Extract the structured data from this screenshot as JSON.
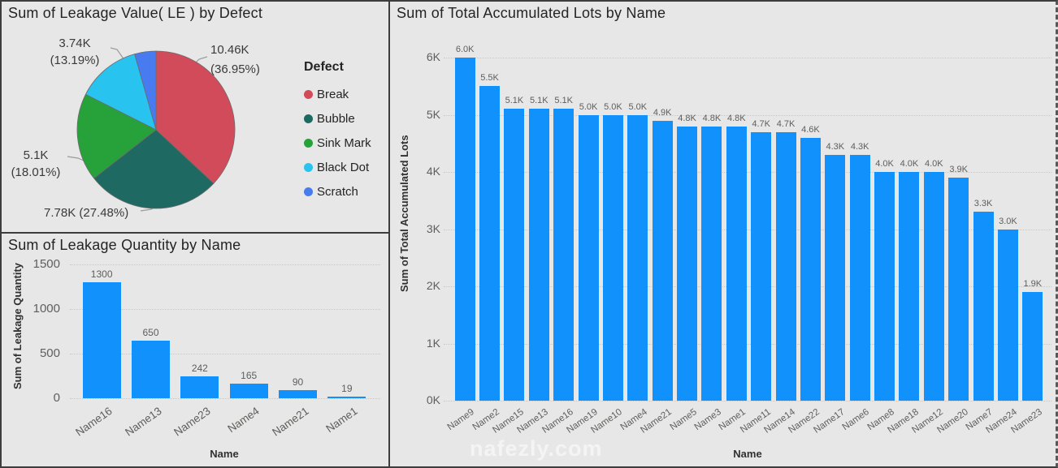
{
  "watermark": "nafezly.com",
  "colors": {
    "bar_blue": "#1191FB",
    "panel_bg": "#e7e7e7",
    "break_red": "#D24B5A",
    "bubble_teal": "#1E6962",
    "sink_mark_green": "#27A23B",
    "black_dot_cyan": "#29C3EF",
    "scratch_blue": "#477BEF"
  },
  "chart_data": [
    {
      "type": "pie",
      "title": "Sum of Leakage Value( LE ) by Defect",
      "legend_title": "Defect",
      "legend_position": "right",
      "slices": [
        {
          "label": "Break",
          "value_text": "10.46K",
          "pct": 36.95,
          "color": "#D24B5A",
          "callout_lines": [
            "10.46K",
            "(36.95%)"
          ]
        },
        {
          "label": "Bubble",
          "value_text": "7.78K",
          "pct": 27.48,
          "color": "#1E6962",
          "callout_lines": [
            "7.78K (27.48%)"
          ]
        },
        {
          "label": "Sink Mark",
          "value_text": "5.1K",
          "pct": 18.01,
          "color": "#27A23B",
          "callout_lines": [
            "5.1K",
            "(18.01%)"
          ]
        },
        {
          "label": "Black Dot",
          "value_text": "3.74K",
          "pct": 13.19,
          "color": "#29C3EF",
          "callout_lines": [
            "3.74K",
            "(13.19%)"
          ]
        },
        {
          "label": "Scratch",
          "pct": 4.37,
          "color": "#477BEF",
          "callout_lines": []
        }
      ]
    },
    {
      "type": "bar",
      "title": "Sum of Leakage Quantity by Name",
      "xlabel": "Name",
      "ylabel": "Sum of Leakage Quantity",
      "categories": [
        "Name16",
        "Name13",
        "Name23",
        "Name4",
        "Name21",
        "Name1"
      ],
      "values": [
        1300,
        650,
        242,
        165,
        90,
        19
      ],
      "value_labels": [
        "1300",
        "650",
        "242",
        "165",
        "90",
        "19"
      ],
      "yticks": [
        0,
        500,
        1000,
        1500
      ],
      "ytick_labels": [
        "0",
        "500",
        "1000",
        "1500"
      ],
      "ylim": [
        0,
        1500
      ],
      "grid": true,
      "bar_color": "#1191FB"
    },
    {
      "type": "bar",
      "title": "Sum of Total Accumulated Lots by Name",
      "xlabel": "Name",
      "ylabel": "Sum of Total Accumulated Lots",
      "categories": [
        "Name9",
        "Name2",
        "Name15",
        "Name13",
        "Name16",
        "Name19",
        "Name10",
        "Name4",
        "Name21",
        "Name5",
        "Name3",
        "Name1",
        "Name11",
        "Name14",
        "Name22",
        "Name17",
        "Name6",
        "Name8",
        "Name18",
        "Name12",
        "Name20",
        "Name7",
        "Name24",
        "Name23"
      ],
      "values": [
        6000,
        5500,
        5100,
        5100,
        5100,
        5000,
        5000,
        5000,
        4900,
        4800,
        4800,
        4800,
        4700,
        4700,
        4600,
        4300,
        4300,
        4000,
        4000,
        4000,
        3900,
        3300,
        3000,
        1900
      ],
      "value_labels": [
        "6.0K",
        "5.5K",
        "5.1K",
        "5.1K",
        "5.1K",
        "5.0K",
        "5.0K",
        "5.0K",
        "4.9K",
        "4.8K",
        "4.8K",
        "4.8K",
        "4.7K",
        "4.7K",
        "4.6K",
        "4.3K",
        "4.3K",
        "4.0K",
        "4.0K",
        "4.0K",
        "3.9K",
        "3.3K",
        "3.0K",
        "1.9K"
      ],
      "yticks": [
        0,
        1000,
        2000,
        3000,
        4000,
        5000,
        6000
      ],
      "ytick_labels": [
        "0K",
        "1K",
        "2K",
        "3K",
        "4K",
        "5K",
        "6K"
      ],
      "ylim": [
        0,
        6000
      ],
      "grid": true,
      "bar_color": "#1191FB"
    }
  ]
}
